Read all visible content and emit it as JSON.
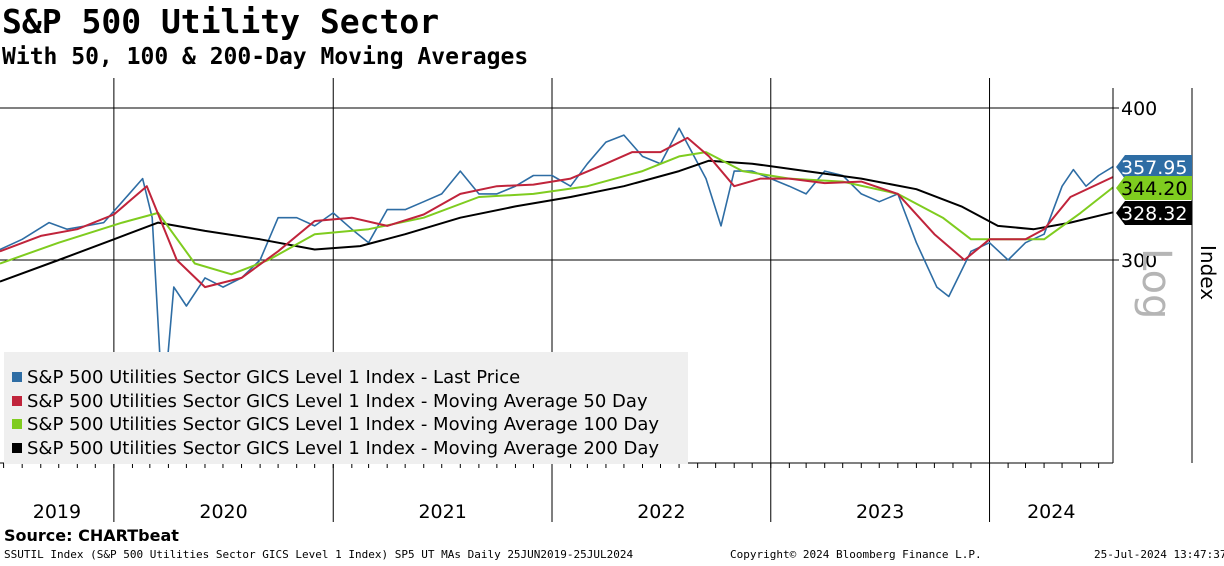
{
  "header": {
    "title": "S&P 500 Utility Sector",
    "subtitle": "With 50, 100 & 200-Day Moving Averages"
  },
  "source": "Source: CHARTbeat",
  "footer": {
    "left": "SSUTIL Index (S&P 500 Utilities Sector GICS Level 1 Index) SP5 UT MAs  Daily 25JUN2019-25JUL2024",
    "center": "Copyright© 2024 Bloomberg Finance L.P.",
    "right": "25-Jul-2024 13:47:37"
  },
  "axis": {
    "ylabel": "Index",
    "scale_label": "Log"
  },
  "colors": {
    "last_price": "#2e6da4",
    "ma50": "#c0243b",
    "ma100": "#7fcc1f",
    "ma200": "#000000"
  },
  "current_values": {
    "last_price": "357.95",
    "ma50": "",
    "ma100": "344.20",
    "ma200": "328.32"
  },
  "chart_data": {
    "type": "line",
    "yscale": "log",
    "ylim": [
      200,
      410
    ],
    "yticks": [
      300,
      400
    ],
    "ytick_labels": [
      "300",
      "400"
    ],
    "xlim": [
      "2019-06-25",
      "2024-07-25"
    ],
    "year_labels": [
      "2019",
      "2020",
      "2021",
      "2022",
      "2023",
      "2024"
    ],
    "grid": true,
    "legend_position": "bottom-left",
    "series": [
      {
        "name": "S&P 500 Utilities Sector GICS Level 1 Index - Last Price",
        "color": "#2e6da4",
        "x": [
          "2019-06-25",
          "2019-08-01",
          "2019-09-15",
          "2019-10-15",
          "2019-11-15",
          "2019-12-15",
          "2020-01-15",
          "2020-02-18",
          "2020-03-05",
          "2020-03-23",
          "2020-04-10",
          "2020-05-01",
          "2020-06-01",
          "2020-07-01",
          "2020-08-01",
          "2020-09-01",
          "2020-10-01",
          "2020-11-01",
          "2020-12-01",
          "2021-01-01",
          "2021-02-01",
          "2021-03-01",
          "2021-04-01",
          "2021-05-01",
          "2021-06-01",
          "2021-07-01",
          "2021-08-01",
          "2021-09-01",
          "2021-10-01",
          "2021-11-01",
          "2021-12-01",
          "2022-01-01",
          "2022-02-01",
          "2022-03-01",
          "2022-04-01",
          "2022-05-01",
          "2022-06-01",
          "2022-07-01",
          "2022-08-01",
          "2022-09-15",
          "2022-10-10",
          "2022-11-01",
          "2022-12-01",
          "2023-01-01",
          "2023-02-01",
          "2023-03-01",
          "2023-04-01",
          "2023-05-01",
          "2023-06-01",
          "2023-07-01",
          "2023-08-01",
          "2023-09-01",
          "2023-10-05",
          "2023-10-25",
          "2023-12-01",
          "2024-01-01",
          "2024-02-01",
          "2024-03-01",
          "2024-04-01",
          "2024-05-01",
          "2024-05-20",
          "2024-06-10",
          "2024-07-01",
          "2024-07-25"
        ],
        "values": [
          306,
          312,
          322,
          318,
          320,
          322,
          335,
          350,
          325,
          225,
          285,
          275,
          290,
          285,
          290,
          300,
          325,
          325,
          320,
          328,
          318,
          310,
          330,
          330,
          335,
          340,
          355,
          340,
          340,
          345,
          352,
          352,
          345,
          360,
          375,
          380,
          365,
          360,
          385,
          350,
          320,
          355,
          355,
          350,
          345,
          340,
          355,
          352,
          340,
          335,
          340,
          310,
          285,
          280,
          305,
          310,
          300,
          310,
          315,
          345,
          356,
          345,
          352,
          357.95
        ]
      },
      {
        "name": "S&P 500 Utilities Sector GICS Level 1 Index - Moving Average 50 Day",
        "color": "#c0243b",
        "x": [
          "2019-06-25",
          "2019-09-01",
          "2019-11-01",
          "2020-01-01",
          "2020-02-25",
          "2020-04-15",
          "2020-06-01",
          "2020-08-01",
          "2020-10-01",
          "2020-12-01",
          "2021-02-01",
          "2021-04-01",
          "2021-06-01",
          "2021-08-01",
          "2021-10-01",
          "2021-12-01",
          "2022-02-01",
          "2022-04-01",
          "2022-05-15",
          "2022-07-01",
          "2022-08-15",
          "2022-09-20",
          "2022-11-01",
          "2022-12-15",
          "2023-02-01",
          "2023-04-01",
          "2023-06-01",
          "2023-08-01",
          "2023-10-01",
          "2023-11-20",
          "2024-01-01",
          "2024-03-01",
          "2024-04-01",
          "2024-05-15",
          "2024-07-25"
        ],
        "values": [
          305,
          314,
          318,
          327,
          345,
          300,
          285,
          290,
          305,
          323,
          325,
          320,
          327,
          340,
          345,
          346,
          350,
          360,
          368,
          368,
          378,
          365,
          345,
          350,
          350,
          347,
          348,
          340,
          315,
          300,
          312,
          312,
          318,
          338,
          351
        ]
      },
      {
        "name": "S&P 500 Utilities Sector GICS Level 1 Index - Moving Average 100 Day",
        "color": "#7fcc1f",
        "x": [
          "2019-06-25",
          "2019-10-01",
          "2020-01-15",
          "2020-03-15",
          "2020-05-15",
          "2020-07-15",
          "2020-09-15",
          "2020-12-01",
          "2021-03-01",
          "2021-06-01",
          "2021-09-01",
          "2021-12-01",
          "2022-03-01",
          "2022-06-01",
          "2022-08-01",
          "2022-09-15",
          "2022-11-15",
          "2023-02-01",
          "2023-05-01",
          "2023-08-01",
          "2023-10-15",
          "2023-12-01",
          "2024-02-01",
          "2024-04-01",
          "2024-06-01",
          "2024-07-25"
        ],
        "values": [
          298,
          310,
          322,
          328,
          298,
          292,
          300,
          315,
          318,
          325,
          338,
          340,
          345,
          355,
          365,
          368,
          355,
          350,
          348,
          340,
          325,
          312,
          312,
          312,
          328,
          344.2
        ]
      },
      {
        "name": "S&P 500 Utilities Sector GICS Level 1 Index - Moving Average 200 Day",
        "color": "#000000",
        "x": [
          "2019-06-25",
          "2019-10-01",
          "2020-01-01",
          "2020-03-15",
          "2020-06-01",
          "2020-09-01",
          "2020-12-01",
          "2021-02-15",
          "2021-05-01",
          "2021-08-01",
          "2021-11-01",
          "2022-02-01",
          "2022-05-01",
          "2022-08-01",
          "2022-09-20",
          "2022-12-01",
          "2023-03-01",
          "2023-06-01",
          "2023-09-01",
          "2023-11-15",
          "2024-01-15",
          "2024-03-15",
          "2024-05-15",
          "2024-07-25"
        ],
        "values": [
          288,
          300,
          312,
          322,
          317,
          312,
          306,
          308,
          315,
          325,
          332,
          338,
          345,
          355,
          362,
          360,
          355,
          350,
          343,
          332,
          320,
          318,
          322,
          328.32
        ]
      }
    ]
  }
}
